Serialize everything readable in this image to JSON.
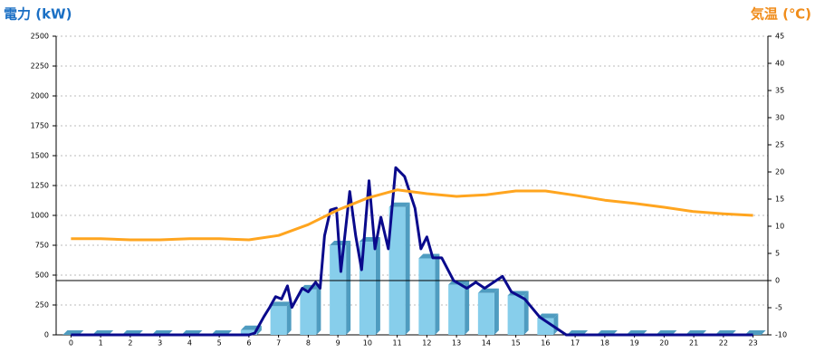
{
  "chart_data": {
    "type": "combo",
    "y_title": "電力 (kW)",
    "y2_title": "気温 (℃)",
    "categories": [
      "0",
      "1",
      "2",
      "3",
      "4",
      "5",
      "6",
      "7",
      "8",
      "9",
      "10",
      "11",
      "12",
      "13",
      "14",
      "15",
      "16",
      "17",
      "18",
      "19",
      "20",
      "21",
      "22",
      "23"
    ],
    "xlim": [
      -0.5,
      23.5
    ],
    "ylim": [
      0,
      2500
    ],
    "yticks": [
      0,
      250,
      500,
      750,
      1000,
      1250,
      1500,
      1750,
      2000,
      2250,
      2500
    ],
    "y2lim": [
      -10,
      45
    ],
    "y2ticks": [
      -10,
      -5,
      0,
      5,
      10,
      15,
      20,
      25,
      30,
      35,
      40,
      45
    ],
    "grid": true,
    "reference_line": {
      "axis": "y2",
      "value": 0,
      "color": "#000000"
    },
    "series": [
      {
        "type": "bar",
        "color": "#87ceeb",
        "side_color": "#4f9cc0",
        "values": [
          0,
          0,
          0,
          0,
          0,
          0,
          40,
          240,
          380,
          750,
          780,
          1070,
          640,
          420,
          350,
          330,
          140,
          0,
          0,
          0,
          0,
          0,
          0,
          0
        ]
      },
      {
        "type": "line",
        "color": "#0a0a8c",
        "x": [
          0,
          6.0,
          6.2,
          6.5,
          6.7,
          6.9,
          7.1,
          7.3,
          7.45,
          7.8,
          8.0,
          8.25,
          8.4,
          8.55,
          8.75,
          8.95,
          9.1,
          9.4,
          9.6,
          9.8,
          10.05,
          10.25,
          10.45,
          10.7,
          10.95,
          11.25,
          11.6,
          11.8,
          12.0,
          12.2,
          12.5,
          12.9,
          13.35,
          13.65,
          13.95,
          14.25,
          14.55,
          14.85,
          15.3,
          15.8,
          16.25,
          16.7,
          23
        ],
        "values": [
          0,
          0,
          15,
          150,
          230,
          320,
          300,
          410,
          230,
          390,
          360,
          440,
          390,
          830,
          1045,
          1060,
          530,
          1200,
          830,
          545,
          1290,
          720,
          985,
          720,
          1400,
          1325,
          1060,
          720,
          820,
          645,
          645,
          455,
          390,
          440,
          390,
          440,
          490,
          360,
          300,
          150,
          75,
          0,
          0
        ]
      },
      {
        "type": "line",
        "axis": "y2",
        "color": "#ffa51f",
        "x": [
          0,
          1,
          2,
          3,
          4,
          5,
          6,
          7,
          8,
          9,
          10,
          11,
          12,
          13,
          14,
          15,
          16,
          17,
          18,
          19,
          20,
          21,
          22,
          23
        ],
        "values": [
          7.7,
          7.7,
          7.5,
          7.5,
          7.7,
          7.7,
          7.5,
          8.3,
          10.3,
          13,
          15.2,
          16.7,
          16,
          15.5,
          15.8,
          16.5,
          16.5,
          15.7,
          14.8,
          14.2,
          13.5,
          12.7,
          12.3,
          12
        ]
      }
    ]
  }
}
